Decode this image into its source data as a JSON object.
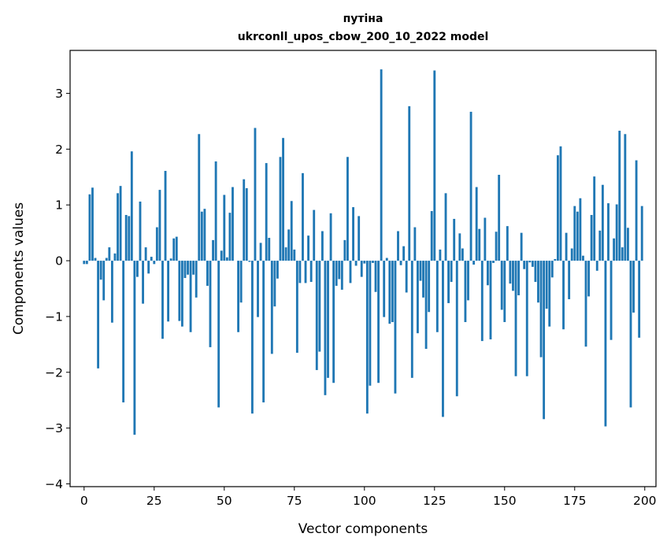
{
  "chart_data": {
    "type": "bar",
    "title_line1": "путіна",
    "title_line2": "ukrconll_upos_cbow_200_10_2022 model",
    "xlabel": "Vector components",
    "ylabel": "Components values",
    "xlim": [
      -5,
      204
    ],
    "ylim": [
      -4.05,
      3.77
    ],
    "xticks": [
      0,
      25,
      50,
      75,
      100,
      125,
      150,
      175,
      200
    ],
    "yticks": [
      -4,
      -3,
      -2,
      -1,
      0,
      1,
      2,
      3
    ],
    "xtick_labels": [
      "0",
      "25",
      "50",
      "75",
      "100",
      "125",
      "150",
      "175",
      "200"
    ],
    "ytick_labels": [
      "−4",
      "−3",
      "−2",
      "−1",
      "0",
      "1",
      "2",
      "3"
    ],
    "grid": false,
    "bar_color": "#1f77b4",
    "x": [
      0,
      1,
      2,
      3,
      4,
      5,
      6,
      7,
      8,
      9,
      10,
      11,
      12,
      13,
      14,
      15,
      16,
      17,
      18,
      19,
      20,
      21,
      22,
      23,
      24,
      25,
      26,
      27,
      28,
      29,
      30,
      31,
      32,
      33,
      34,
      35,
      36,
      37,
      38,
      39,
      40,
      41,
      42,
      43,
      44,
      45,
      46,
      47,
      48,
      49,
      50,
      51,
      52,
      53,
      54,
      55,
      56,
      57,
      58,
      59,
      60,
      61,
      62,
      63,
      64,
      65,
      66,
      67,
      68,
      69,
      70,
      71,
      72,
      73,
      74,
      75,
      76,
      77,
      78,
      79,
      80,
      81,
      82,
      83,
      84,
      85,
      86,
      87,
      88,
      89,
      90,
      91,
      92,
      93,
      94,
      95,
      96,
      97,
      98,
      99,
      100,
      101,
      102,
      103,
      104,
      105,
      106,
      107,
      108,
      109,
      110,
      111,
      112,
      113,
      114,
      115,
      116,
      117,
      118,
      119,
      120,
      121,
      122,
      123,
      124,
      125,
      126,
      127,
      128,
      129,
      130,
      131,
      132,
      133,
      134,
      135,
      136,
      137,
      138,
      139,
      140,
      141,
      142,
      143,
      144,
      145,
      146,
      147,
      148,
      149,
      150,
      151,
      152,
      153,
      154,
      155,
      156,
      157,
      158,
      159,
      160,
      161,
      162,
      163,
      164,
      165,
      166,
      167,
      168,
      169,
      170,
      171,
      172,
      173,
      174,
      175,
      176,
      177,
      178,
      179,
      180,
      181,
      182,
      183,
      184,
      185,
      186,
      187,
      188,
      189,
      190,
      191,
      192,
      193,
      194,
      195,
      196,
      197,
      198,
      199
    ],
    "values": [
      -0.06,
      -0.06,
      1.19,
      1.31,
      0.05,
      -1.93,
      -0.34,
      -0.71,
      0.05,
      0.24,
      -1.11,
      0.13,
      1.21,
      1.34,
      -2.54,
      0.82,
      0.8,
      1.96,
      -3.12,
      -0.29,
      1.06,
      -0.77,
      0.24,
      -0.23,
      0.07,
      -0.06,
      0.6,
      1.27,
      -1.4,
      1.61,
      -1.09,
      0.04,
      0.4,
      0.43,
      -1.08,
      -1.18,
      -0.31,
      -0.25,
      -1.28,
      -0.25,
      -0.66,
      2.27,
      0.88,
      0.93,
      -0.45,
      -1.55,
      0.37,
      1.78,
      -2.63,
      0.18,
      1.18,
      0.06,
      0.86,
      1.32,
      0.0,
      -1.28,
      -0.75,
      1.46,
      1.3,
      -0.02,
      -2.74,
      2.38,
      -1.01,
      0.32,
      -2.54,
      1.75,
      0.41,
      -1.67,
      -0.82,
      -0.32,
      1.86,
      2.2,
      0.24,
      0.56,
      1.07,
      0.2,
      -1.65,
      -0.4,
      1.57,
      -0.4,
      0.45,
      -0.38,
      0.91,
      -1.96,
      -1.63,
      0.53,
      -2.41,
      -2.1,
      0.85,
      -2.19,
      -0.45,
      -0.33,
      -0.52,
      0.37,
      1.86,
      -0.4,
      0.96,
      -0.09,
      0.8,
      -0.29,
      -0.05,
      -2.74,
      -2.24,
      -0.04,
      -0.56,
      -2.19,
      3.43,
      -1.01,
      0.05,
      -1.13,
      -1.1,
      -2.38,
      0.53,
      -0.08,
      0.26,
      -0.57,
      2.77,
      -2.1,
      0.6,
      -1.3,
      -0.36,
      -0.66,
      -1.58,
      -0.92,
      0.89,
      3.41,
      -1.28,
      0.2,
      -2.8,
      1.21,
      -0.76,
      -0.38,
      0.75,
      -2.43,
      0.49,
      0.22,
      -1.1,
      -0.71,
      2.67,
      -0.07,
      1.32,
      0.57,
      -1.44,
      0.77,
      -0.44,
      -1.41,
      -0.04,
      0.52,
      1.54,
      -0.88,
      -1.1,
      0.62,
      -0.41,
      -0.54,
      -2.07,
      -0.62,
      0.5,
      -0.15,
      -2.07,
      -0.03,
      -0.11,
      -0.38,
      -0.75,
      -1.73,
      -2.84,
      -0.86,
      -1.18,
      -0.3,
      0.03,
      1.89,
      2.05,
      -1.23,
      0.5,
      -0.69,
      0.22,
      0.98,
      0.88,
      1.12,
      0.09,
      -1.54,
      -0.64,
      0.82,
      1.51,
      -0.18,
      0.54,
      1.36,
      -2.97,
      1.03,
      -1.42,
      0.4,
      1.01,
      2.33,
      0.24,
      2.27,
      0.59,
      -2.63,
      -0.93,
      1.8,
      -1.38,
      0.98
    ]
  }
}
